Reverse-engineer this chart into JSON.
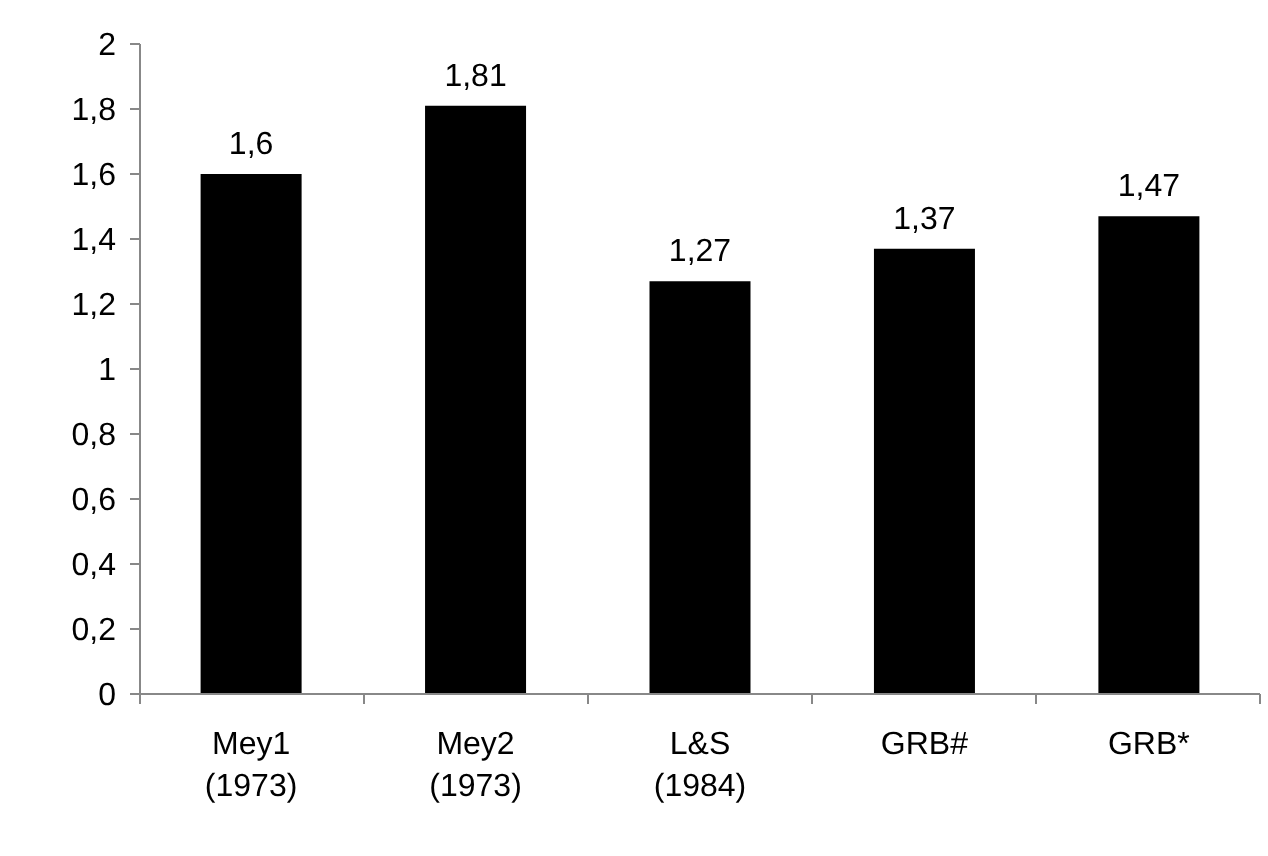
{
  "chart_data": {
    "type": "bar",
    "categories": [
      "Mey1 (1973)",
      "Mey2 (1973)",
      "L&S (1984)",
      "GRB#",
      "GRB*"
    ],
    "values": [
      1.6,
      1.81,
      1.27,
      1.37,
      1.47
    ],
    "value_labels": [
      "1,6",
      "1,81",
      "1,27",
      "1,37",
      "1,47"
    ],
    "color": "#000000",
    "ylim": [
      0,
      2
    ],
    "yticks": [
      0,
      {
        "value": 0.2,
        "label": "0,2"
      },
      {
        "value": 0.4,
        "label": "0,4"
      },
      {
        "value": 0.6,
        "label": "0,6"
      },
      {
        "value": 0.8,
        "label": "0,8"
      },
      1,
      {
        "value": 1.2,
        "label": "1,2"
      },
      {
        "value": 1.4,
        "label": "1,4"
      },
      {
        "value": 1.6,
        "label": "1,6"
      },
      {
        "value": 1.8,
        "label": "1,8"
      },
      2
    ],
    "grid": false
  }
}
